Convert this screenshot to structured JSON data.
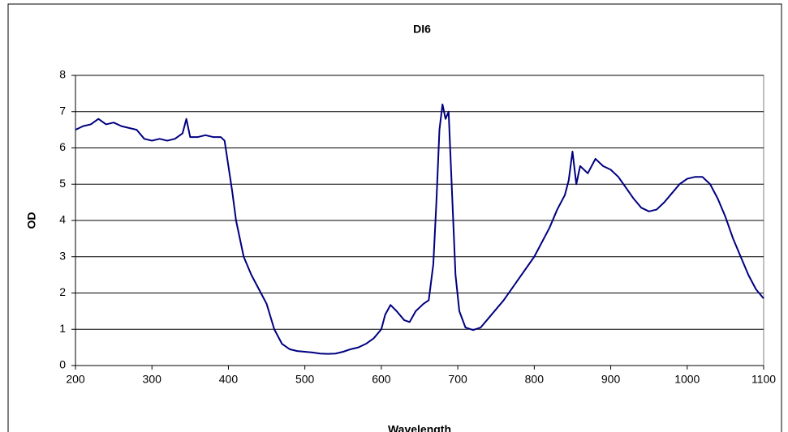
{
  "chart_data": {
    "type": "line",
    "title": "DI6",
    "x_label": "Wavelength",
    "y_label": "OD",
    "x": [
      200,
      210,
      220,
      230,
      240,
      250,
      260,
      270,
      280,
      290,
      300,
      310,
      320,
      330,
      340,
      345,
      350,
      360,
      370,
      380,
      390,
      395,
      400,
      405,
      410,
      420,
      430,
      440,
      450,
      460,
      470,
      480,
      490,
      500,
      510,
      520,
      530,
      540,
      550,
      560,
      570,
      580,
      590,
      600,
      605,
      612,
      620,
      630,
      637,
      645,
      655,
      662,
      668,
      672,
      676,
      680,
      684,
      688,
      692,
      697,
      702,
      710,
      720,
      730,
      740,
      760,
      780,
      800,
      820,
      830,
      840,
      845,
      850,
      855,
      860,
      870,
      880,
      890,
      900,
      910,
      920,
      930,
      940,
      950,
      960,
      970,
      980,
      990,
      1000,
      1010,
      1020,
      1030,
      1040,
      1050,
      1060,
      1070,
      1080,
      1090,
      1100
    ],
    "series": [
      {
        "name": "DI6",
        "color": "#000080",
        "values": [
          6.5,
          6.6,
          6.65,
          6.8,
          6.65,
          6.7,
          6.6,
          6.55,
          6.5,
          6.25,
          6.2,
          6.25,
          6.2,
          6.25,
          6.4,
          6.8,
          6.3,
          6.3,
          6.35,
          6.3,
          6.3,
          6.2,
          5.5,
          4.8,
          4.0,
          3.0,
          2.5,
          2.1,
          1.7,
          1.0,
          0.6,
          0.45,
          0.4,
          0.38,
          0.36,
          0.33,
          0.32,
          0.33,
          0.38,
          0.45,
          0.5,
          0.6,
          0.75,
          1.0,
          1.4,
          1.67,
          1.5,
          1.25,
          1.2,
          1.5,
          1.7,
          1.8,
          2.8,
          4.5,
          6.5,
          7.2,
          6.8,
          7.0,
          5.0,
          2.5,
          1.5,
          1.05,
          0.98,
          1.05,
          1.3,
          1.8,
          2.4,
          3.0,
          3.8,
          4.3,
          4.7,
          5.1,
          5.9,
          5.0,
          5.5,
          5.3,
          5.7,
          5.5,
          5.4,
          5.2,
          4.9,
          4.6,
          4.35,
          4.25,
          4.3,
          4.5,
          4.75,
          5.0,
          5.15,
          5.2,
          5.2,
          5.0,
          4.6,
          4.1,
          3.5,
          3.0,
          2.5,
          2.1,
          1.85
        ]
      }
    ],
    "xlim": [
      200,
      1100
    ],
    "xticks": [
      200,
      300,
      400,
      500,
      600,
      700,
      800,
      900,
      1000,
      1100
    ],
    "ylim": [
      0,
      8
    ],
    "yticks": [
      0,
      1,
      2,
      3,
      4,
      5,
      6,
      7,
      8
    ],
    "grid": true
  }
}
